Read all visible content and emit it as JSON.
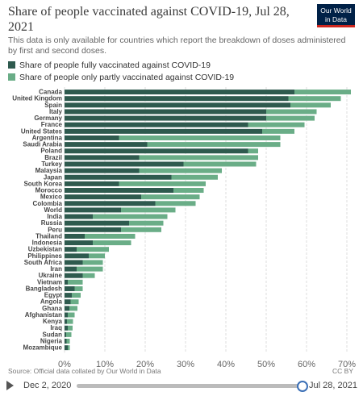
{
  "header": {
    "title": "Share of people vaccinated against COVID-19, Jul 28, 2021",
    "subtitle": "This data is only available for countries which report the breakdown of doses administered by first and second doses.",
    "logo_line1": "Our World",
    "logo_line2": "in Data"
  },
  "colors": {
    "fully": "#2e5a4e",
    "partly": "#6aad87",
    "grid": "#dddddd",
    "logo_bg": "#002147",
    "logo_bar": "#ce261e",
    "handle": "#3b6fb6"
  },
  "footer": {
    "source": "Source: Official data collated by Our World in Data",
    "license": "CC BY"
  },
  "timeline": {
    "start_label": "Dec 2, 2020",
    "end_label": "Jul 28, 2021",
    "position": 1.0
  },
  "chart_data": {
    "type": "bar",
    "orientation": "horizontal",
    "stacked": true,
    "title": "Share of people vaccinated against COVID-19, Jul 28, 2021",
    "xlim": [
      0,
      70
    ],
    "x_ticks": [
      "0%",
      "10%",
      "20%",
      "30%",
      "40%",
      "50%",
      "60%",
      "70%"
    ],
    "grid": true,
    "legend_position": "top-left",
    "categories": [
      "Canada",
      "United Kingdom",
      "Spain",
      "Italy",
      "Germany",
      "France",
      "United States",
      "Argentina",
      "Saudi Arabia",
      "Poland",
      "Brazil",
      "Turkey",
      "Malaysia",
      "Japan",
      "South Korea",
      "Morocco",
      "Mexico",
      "Colombia",
      "World",
      "India",
      "Russia",
      "Peru",
      "Thailand",
      "Indonesia",
      "Uzbekistan",
      "Philippines",
      "South Africa",
      "Iran",
      "Ukraine",
      "Vietnam",
      "Bangladesh",
      "Egypt",
      "Angola",
      "Ghana",
      "Afghanistan",
      "Kenya",
      "Iraq",
      "Sudan",
      "Nigeria",
      "Mozambique"
    ],
    "series": [
      {
        "name": "Share of people fully vaccinated against COVID-19",
        "values": [
          57,
          55.5,
          56,
          50,
          50,
          45.5,
          49,
          13.5,
          20.5,
          45.5,
          18.5,
          29.5,
          18.5,
          26.5,
          13.5,
          27,
          19,
          22.5,
          14,
          7,
          16,
          14,
          5,
          7,
          3,
          6,
          4.5,
          3,
          4.5,
          0.8,
          2.5,
          1.8,
          1.5,
          1.2,
          0.8,
          0.6,
          0.8,
          0.4,
          0.5,
          0.8
        ]
      },
      {
        "name": "Share of people only partly vaccinated against COVID-19",
        "values": [
          14,
          13,
          10,
          12.5,
          12,
          14,
          8,
          40,
          33,
          2.5,
          29.5,
          18,
          20.5,
          11.5,
          21.5,
          7.5,
          14.5,
          10,
          13.5,
          18.5,
          8.5,
          10,
          12.5,
          9.5,
          8,
          4,
          5,
          6.5,
          3,
          3.7,
          2,
          2.2,
          2,
          2,
          1.7,
          1.5,
          1.2,
          1.3,
          0.8,
          0.5
        ]
      }
    ]
  }
}
